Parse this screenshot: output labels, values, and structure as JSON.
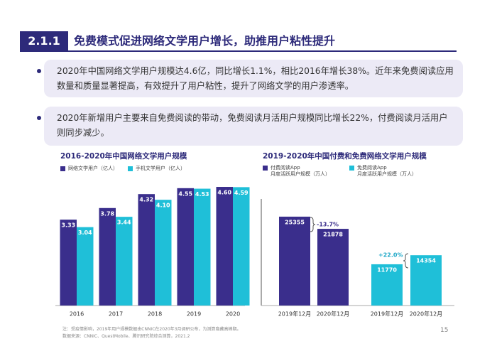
{
  "header": {
    "number": "2.1.1",
    "title": "免费模式促进网络文学用户增长，助推用户粘性提升"
  },
  "bullets": [
    "2020年中国网络文学用户规模达4.6亿，同比增长1.1%，相比2016年增长38%。近年来免费阅读应用数量和质量显著提高，有效提升了用户粘性，提升了网络文学的用户渗透率。",
    "2020年新增用户主要来自免费阅读的带动，免费阅读月活用户规模同比增长22%，付费阅读月活用户则同步减少。"
  ],
  "chart_data": [
    {
      "type": "bar",
      "title": "2016-2020年中国网络文学用户规模",
      "categories": [
        "2016",
        "2017",
        "2018",
        "2019",
        "2020"
      ],
      "series": [
        {
          "name": "网络文学用户（亿人）",
          "color": "#3a2e8c",
          "values": [
            3.33,
            3.78,
            4.32,
            4.55,
            4.6
          ],
          "value_labels": [
            "3.33",
            "3.78",
            "4.32",
            "4.55",
            "4.60"
          ]
        },
        {
          "name": "手机文学用户（亿人）",
          "color": "#1fbfd8",
          "values": [
            3.04,
            3.44,
            4.1,
            4.53,
            4.59
          ],
          "value_labels": [
            "3.04",
            "3.44",
            "4.10",
            "4.53",
            "4.59"
          ]
        }
      ],
      "ylim": [
        0,
        5
      ]
    },
    {
      "type": "bar",
      "title": "2019-2020年中国付费和免费网络文学用户规模",
      "categories": [
        "2019年12月",
        "2020年12月"
      ],
      "series": [
        {
          "name": "付费阅读App\n月度活跃用户规模（万人）",
          "color": "#3a2e8c",
          "values": [
            25355,
            21878
          ]
        },
        {
          "name": "免费阅读App\n月度活跃用户规模（万人）",
          "color": "#1fbfd8",
          "values": [
            11770,
            14354
          ]
        }
      ],
      "annotations": [
        "-13.7%",
        "+22.0%"
      ],
      "ylim": [
        0,
        30000
      ]
    }
  ],
  "footnotes": [
    "注：受疫情影响，2019年用户规模数据由CNNIC在2020年3月调研公布，为测算隐藏高峰期。",
    "数据来源：CNNIC、QuestMobile、腾讯研究院综合测算，2021.2"
  ],
  "page_number": "15"
}
